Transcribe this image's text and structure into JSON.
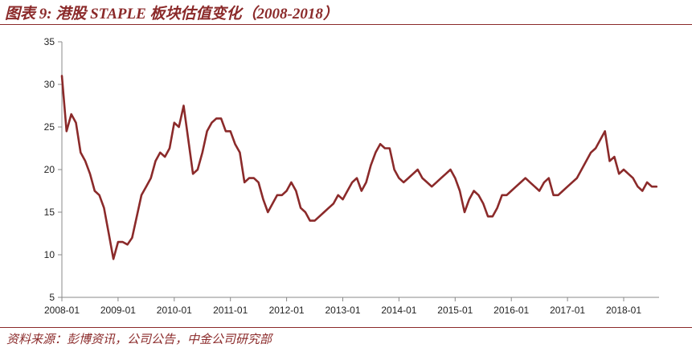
{
  "header": {
    "title": "图表 9:  港股 STAPLE 板块估值变化（2008-2018）"
  },
  "footer": {
    "source": "资料来源：彭博资讯，公司公告，中金公司研究部"
  },
  "colors": {
    "series": "#8b2a2a",
    "axis": "#888888",
    "title": "#8b2a2a"
  },
  "chart_data": {
    "type": "line",
    "title": "",
    "xlabel": "",
    "ylabel": "",
    "ylim": [
      5,
      35
    ],
    "yticks": [
      5,
      10,
      15,
      20,
      25,
      30,
      35
    ],
    "xlim": [
      "2008-01",
      "2018-08"
    ],
    "xticks": [
      "2008-01",
      "2009-01",
      "2010-01",
      "2011-01",
      "2012-01",
      "2013-01",
      "2014-01",
      "2015-01",
      "2016-01",
      "2017-01",
      "2018-01"
    ],
    "grid": false,
    "legend": "none",
    "series": [
      {
        "x": [
          "2008-01",
          "2008-02",
          "2008-03",
          "2008-04",
          "2008-05",
          "2008-06",
          "2008-07",
          "2008-08",
          "2008-09",
          "2008-10",
          "2008-11",
          "2008-12",
          "2009-01",
          "2009-02",
          "2009-03",
          "2009-04",
          "2009-05",
          "2009-06",
          "2009-07",
          "2009-08",
          "2009-09",
          "2009-10",
          "2009-11",
          "2009-12",
          "2010-01",
          "2010-02",
          "2010-03",
          "2010-04",
          "2010-05",
          "2010-06",
          "2010-07",
          "2010-08",
          "2010-09",
          "2010-10",
          "2010-11",
          "2010-12",
          "2011-01",
          "2011-02",
          "2011-03",
          "2011-04",
          "2011-05",
          "2011-06",
          "2011-07",
          "2011-08",
          "2011-09",
          "2011-10",
          "2011-11",
          "2011-12",
          "2012-01",
          "2012-02",
          "2012-03",
          "2012-04",
          "2012-05",
          "2012-06",
          "2012-07",
          "2012-08",
          "2012-09",
          "2012-10",
          "2012-11",
          "2012-12",
          "2013-01",
          "2013-02",
          "2013-03",
          "2013-04",
          "2013-05",
          "2013-06",
          "2013-07",
          "2013-08",
          "2013-09",
          "2013-10",
          "2013-11",
          "2013-12",
          "2014-01",
          "2014-02",
          "2014-03",
          "2014-04",
          "2014-05",
          "2014-06",
          "2014-07",
          "2014-08",
          "2014-09",
          "2014-10",
          "2014-11",
          "2014-12",
          "2015-01",
          "2015-02",
          "2015-03",
          "2015-04",
          "2015-05",
          "2015-06",
          "2015-07",
          "2015-08",
          "2015-09",
          "2015-10",
          "2015-11",
          "2015-12",
          "2016-01",
          "2016-02",
          "2016-03",
          "2016-04",
          "2016-05",
          "2016-06",
          "2016-07",
          "2016-08",
          "2016-09",
          "2016-10",
          "2016-11",
          "2016-12",
          "2017-01",
          "2017-02",
          "2017-03",
          "2017-04",
          "2017-05",
          "2017-06",
          "2017-07",
          "2017-08",
          "2017-09",
          "2017-10",
          "2017-11",
          "2017-12",
          "2018-01",
          "2018-02",
          "2018-03",
          "2018-04",
          "2018-05",
          "2018-06",
          "2018-07",
          "2018-08"
        ],
        "values": [
          31.0,
          24.5,
          26.5,
          25.5,
          22.0,
          21.0,
          19.5,
          17.5,
          17.0,
          15.5,
          12.5,
          9.5,
          11.5,
          11.5,
          11.2,
          12.0,
          14.5,
          17.0,
          18.0,
          19.0,
          21.0,
          22.0,
          21.5,
          22.5,
          25.5,
          25.0,
          27.5,
          23.5,
          19.5,
          20.0,
          22.0,
          24.5,
          25.5,
          26.0,
          26.0,
          24.5,
          24.5,
          23.0,
          22.0,
          18.5,
          19.0,
          19.0,
          18.5,
          16.5,
          15.0,
          16.0,
          17.0,
          17.0,
          17.5,
          18.5,
          17.5,
          15.5,
          15.0,
          14.0,
          14.0,
          14.5,
          15.0,
          15.5,
          16.0,
          17.0,
          16.5,
          17.5,
          18.5,
          19.0,
          17.5,
          18.5,
          20.5,
          22.0,
          23.0,
          22.5,
          22.5,
          20.0,
          19.0,
          18.5,
          19.0,
          19.5,
          20.0,
          19.0,
          18.5,
          18.0,
          18.5,
          19.0,
          19.5,
          20.0,
          19.0,
          17.5,
          15.0,
          16.5,
          17.5,
          17.0,
          16.0,
          14.5,
          14.5,
          15.5,
          17.0,
          17.0,
          17.5,
          18.0,
          18.5,
          19.0,
          18.5,
          18.0,
          17.5,
          18.5,
          19.0,
          17.0,
          17.0,
          17.5,
          18.0,
          18.5,
          19.0,
          20.0,
          21.0,
          22.0,
          22.5,
          23.5,
          24.5,
          21.0,
          21.5,
          19.5,
          20.0,
          19.5,
          19.0,
          18.0,
          17.5,
          18.5,
          18.0,
          18.0
        ]
      }
    ]
  }
}
